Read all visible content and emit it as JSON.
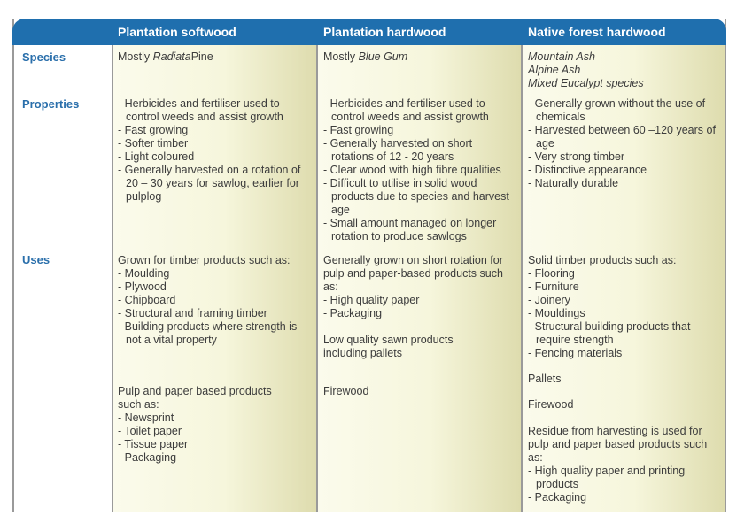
{
  "headers": [
    "Plantation softwood",
    "Plantation hardwood",
    "Native forest hardwood"
  ],
  "row_labels": {
    "species": "Species",
    "properties": "Properties",
    "uses": "Uses"
  },
  "species": {
    "softwood_prefix": "Mostly ",
    "softwood_italic": "Radiata",
    "softwood_suffix": "Pine",
    "hardwood_prefix": "Mostly ",
    "hardwood_italic": "Blue Gum",
    "native": [
      "Mountain Ash",
      "Alpine Ash",
      "Mixed Eucalypt species"
    ]
  },
  "properties": {
    "softwood": [
      "Herbicides and fertiliser used to control weeds and assist growth",
      "Fast growing",
      "Softer timber",
      "Light coloured",
      "Generally harvested on a rotation of 20 – 30 years for sawlog, earlier for pulplog"
    ],
    "hardwood": [
      "Herbicides and fertiliser used to control weeds and assist growth",
      "Fast growing",
      "Generally harvested on short rotations of 12 - 20 years",
      "Clear wood with high fibre qualities",
      "Difficult to utilise in solid wood products due to species and harvest age",
      "Small amount managed on longer rotation to produce sawlogs"
    ],
    "native": [
      "Generally grown without the use of chemicals",
      "Harvested between 60 –120 years of age",
      "Very strong timber",
      "Distinctive appearance",
      "Naturally durable"
    ]
  },
  "uses": {
    "softwood_intro": "Grown for timber products such as:",
    "softwood_list": [
      "Moulding",
      "Plywood",
      "Chipboard",
      "Structural and framing timber",
      "Building products where strength is not a vital property"
    ],
    "softwood_intro2": "Pulp and paper based products such as:",
    "softwood_list2": [
      "Newsprint",
      "Toilet paper",
      "Tissue paper",
      "Packaging"
    ],
    "hardwood_intro": "Generally grown on short rotation for pulp and paper-based products such as:",
    "hardwood_list": [
      "High quality paper",
      "Packaging"
    ],
    "hardwood_text2": "Low quality sawn products including pallets",
    "hardwood_text3": "Firewood",
    "native_intro": "Solid timber products such as:",
    "native_list": [
      "Flooring",
      "Furniture",
      "Joinery",
      "Mouldings",
      "Structural building products that require strength",
      "Fencing materials"
    ],
    "native_text2": "Pallets",
    "native_text3": "Firewood",
    "native_intro4": "Residue from harvesting is used for pulp and paper based products such as:",
    "native_list4": [
      "High quality paper and printing products",
      "Packaging"
    ]
  },
  "colors": {
    "header_blue": "#1f6fae",
    "label_blue": "#2a6fab",
    "border_grey": "#9a9a9a"
  }
}
